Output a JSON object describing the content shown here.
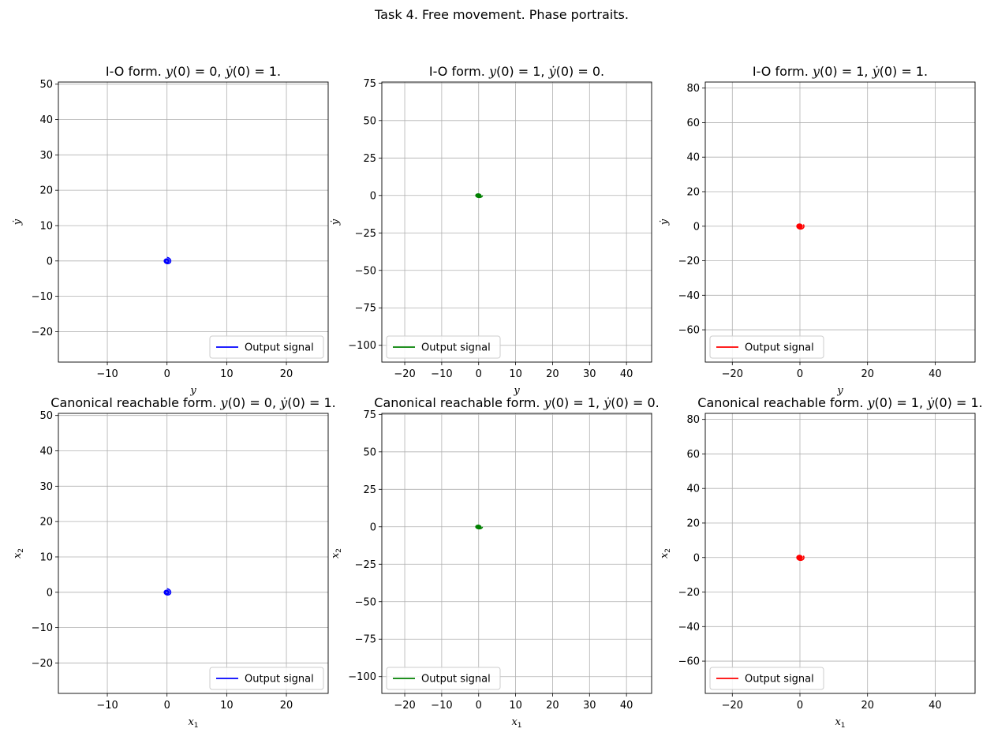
{
  "figure": {
    "title": "Task 4. Free movement. Phase portraits."
  },
  "chart_data": [
    {
      "type": "line",
      "title": "I-O form. y(0) = 0, ẏ(0) = 1.",
      "title_parts": {
        "prefix": "I-O form. ",
        "y0": "0",
        "dy0": "1"
      },
      "xlabel": "y",
      "ylabel": "ẏ",
      "xlim": [
        -18.2,
        27.0
      ],
      "ylim": [
        -28.6,
        50.6
      ],
      "xticks": [
        -10,
        0,
        10,
        20
      ],
      "yticks": [
        -20,
        -10,
        0,
        10,
        20,
        30,
        40,
        50
      ],
      "xticklabels": [
        "−10",
        "0",
        "10",
        "20"
      ],
      "yticklabels": [
        "−20",
        "−10",
        "0",
        "10",
        "20",
        "30",
        "40",
        "50"
      ],
      "grid": true,
      "legend": {
        "placement": "lower right"
      },
      "series": [
        {
          "name": "Output signal",
          "color": "#0000ff",
          "spiral": {
            "direction": 1,
            "sigma": 0.135,
            "omega": 1.4,
            "t_end": 10.75,
            "a_y": 0,
            "a_dy": 1
          }
        }
      ]
    },
    {
      "type": "line",
      "title": "I-O form. y(0) = 1, ẏ(0) = 0.",
      "title_parts": {
        "prefix": "I-O form. ",
        "y0": "1",
        "dy0": "0"
      },
      "xlabel": "y",
      "ylabel": "ẏ",
      "xlim": [
        -26.2,
        46.8
      ],
      "ylim": [
        -111.2,
        75.7
      ],
      "xticks": [
        -20,
        -10,
        0,
        10,
        20,
        30,
        40
      ],
      "yticks": [
        -100,
        -75,
        -50,
        -25,
        0,
        25,
        50,
        75
      ],
      "xticklabels": [
        "−20",
        "−10",
        "0",
        "10",
        "20",
        "30",
        "40"
      ],
      "yticklabels": [
        "−100",
        "−75",
        "−50",
        "−25",
        "0",
        "25",
        "50",
        "75"
      ],
      "grid": true,
      "legend": {
        "placement": "lower left"
      },
      "series": [
        {
          "name": "Output signal",
          "color": "#008000",
          "spiral": {
            "direction": 1,
            "sigma": 0.135,
            "omega": 1.53,
            "t_end": 15.97,
            "a_y": 1,
            "a_dy": 0
          }
        }
      ]
    },
    {
      "type": "line",
      "title": "I-O form. y(0) = 1, ẏ(0) = 1.",
      "title_parts": {
        "prefix": "I-O form. ",
        "y0": "1",
        "dy0": "1"
      },
      "xlabel": "y",
      "ylabel": "ẏ",
      "xlim": [
        -28.0,
        51.8
      ],
      "ylim": [
        -78.7,
        83.5
      ],
      "xticks": [
        -20,
        0,
        20,
        40
      ],
      "yticks": [
        -60,
        -40,
        -20,
        0,
        20,
        40,
        60,
        80
      ],
      "xticklabels": [
        "−20",
        "0",
        "20",
        "40"
      ],
      "yticklabels": [
        "−60",
        "−40",
        "−20",
        "0",
        "20",
        "40",
        "60",
        "80"
      ],
      "grid": true,
      "legend": {
        "placement": "lower left"
      },
      "series": [
        {
          "name": "Output signal",
          "color": "#ff0000",
          "spiral": {
            "direction": 1,
            "sigma": 0.135,
            "omega": 1.55,
            "t_end": 15.95,
            "a_y": 1,
            "a_dy": 1
          }
        }
      ]
    },
    {
      "type": "line",
      "title": "Canonical reachable form. y(0) = 0, ẏ(0) = 1.",
      "title_parts": {
        "prefix": "Canonical reachable form. ",
        "y0": "0",
        "dy0": "1"
      },
      "xlabel": "x1",
      "ylabel": "x2",
      "xlim": [
        -18.2,
        27.0
      ],
      "ylim": [
        -28.6,
        50.6
      ],
      "xticks": [
        -10,
        0,
        10,
        20
      ],
      "yticks": [
        -20,
        -10,
        0,
        10,
        20,
        30,
        40,
        50
      ],
      "xticklabels": [
        "−10",
        "0",
        "10",
        "20"
      ],
      "yticklabels": [
        "−20",
        "−10",
        "0",
        "10",
        "20",
        "30",
        "40",
        "50"
      ],
      "grid": true,
      "legend": {
        "placement": "lower right"
      },
      "series": [
        {
          "name": "Output signal",
          "color": "#0000ff",
          "spiral": {
            "direction": 1,
            "sigma": 0.135,
            "omega": 1.4,
            "t_end": 10.75,
            "a_y": 0,
            "a_dy": 1
          }
        }
      ]
    },
    {
      "type": "line",
      "title": "Canonical reachable form. y(0) = 1, ẏ(0) = 0.",
      "title_parts": {
        "prefix": "Canonical reachable form. ",
        "y0": "1",
        "dy0": "0"
      },
      "xlabel": "x1",
      "ylabel": "x2",
      "xlim": [
        -26.2,
        46.8
      ],
      "ylim": [
        -111.2,
        75.7
      ],
      "xticks": [
        -20,
        -10,
        0,
        10,
        20,
        30,
        40
      ],
      "yticks": [
        -100,
        -75,
        -50,
        -25,
        0,
        25,
        50,
        75
      ],
      "xticklabels": [
        "−20",
        "−10",
        "0",
        "10",
        "20",
        "30",
        "40"
      ],
      "yticklabels": [
        "−100",
        "−75",
        "−50",
        "−25",
        "0",
        "25",
        "50",
        "75"
      ],
      "grid": true,
      "legend": {
        "placement": "lower left"
      },
      "series": [
        {
          "name": "Output signal",
          "color": "#008000",
          "spiral": {
            "direction": 1,
            "sigma": 0.135,
            "omega": 1.53,
            "t_end": 15.97,
            "a_y": 1,
            "a_dy": 0
          }
        }
      ]
    },
    {
      "type": "line",
      "title": "Canonical reachable form. y(0) = 1, ẏ(0) = 1.",
      "title_parts": {
        "prefix": "Canonical reachable form. ",
        "y0": "1",
        "dy0": "1"
      },
      "xlabel": "x1",
      "ylabel": "x2",
      "xlim": [
        -28.0,
        51.8
      ],
      "ylim": [
        -78.7,
        83.5
      ],
      "xticks": [
        -20,
        0,
        20,
        40
      ],
      "yticks": [
        -60,
        -40,
        -20,
        0,
        20,
        40,
        60,
        80
      ],
      "xticklabels": [
        "−20",
        "0",
        "20",
        "40"
      ],
      "yticklabels": [
        "−60",
        "−40",
        "−20",
        "0",
        "20",
        "40",
        "60",
        "80"
      ],
      "grid": true,
      "legend": {
        "placement": "lower left"
      },
      "series": [
        {
          "name": "Output signal",
          "color": "#ff0000",
          "spiral": {
            "direction": 1,
            "sigma": 0.135,
            "omega": 1.55,
            "t_end": 15.95,
            "a_y": 1,
            "a_dy": 1
          }
        }
      ]
    }
  ]
}
